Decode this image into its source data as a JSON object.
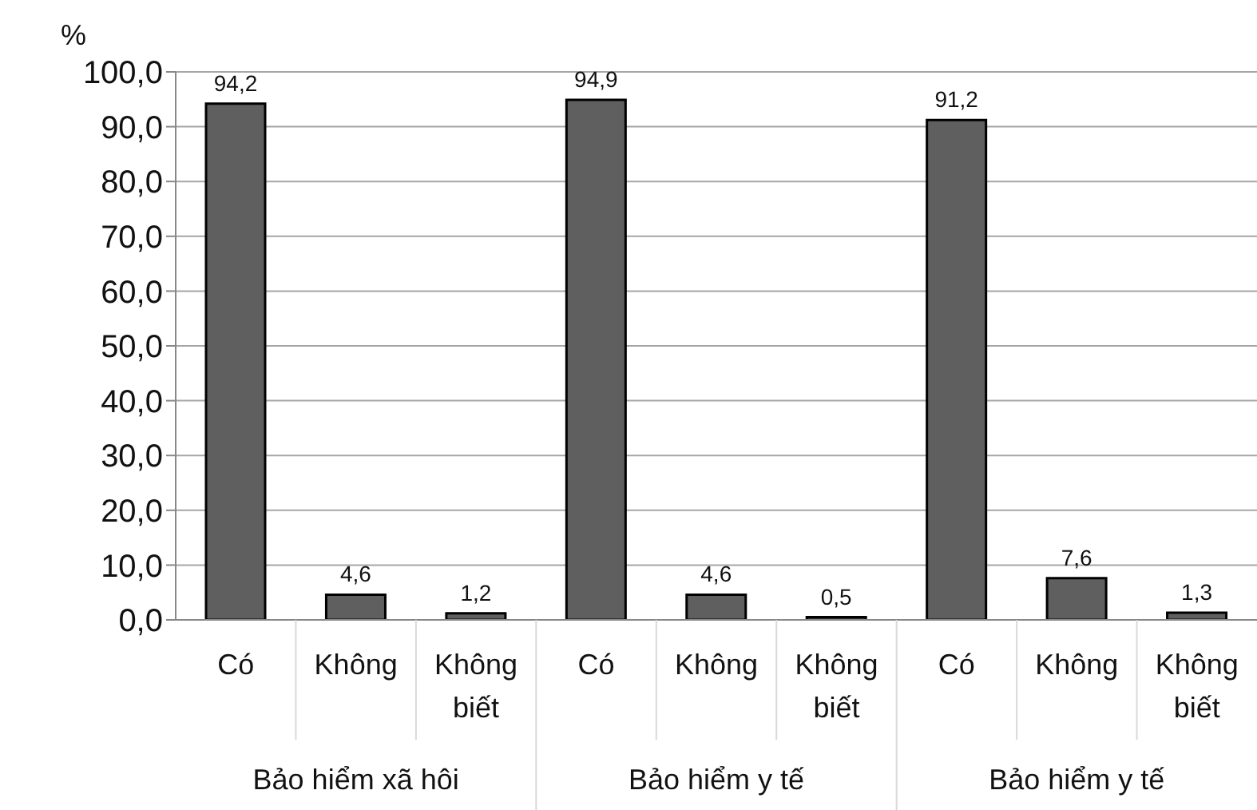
{
  "chart_data": {
    "type": "bar",
    "ylabel": "%",
    "categories": [
      "Có",
      "Không",
      "Không biết",
      "Có",
      "Không",
      "Không biết",
      "Có",
      "Không",
      "Không biết"
    ],
    "values": [
      94.2,
      4.6,
      1.2,
      94.9,
      4.6,
      0.5,
      91.2,
      7.6,
      1.3
    ],
    "value_labels": [
      "94,2",
      "4,6",
      "1,2",
      "94,9",
      "4,6",
      "0,5",
      "91,2",
      "7,6",
      "1,3"
    ],
    "color": "#5f5f5f",
    "ylim": [
      0,
      100
    ],
    "yticks": [
      {
        "value": 0,
        "label": "0,0"
      },
      {
        "value": 10,
        "label": "10,0"
      },
      {
        "value": 20,
        "label": "20,0"
      },
      {
        "value": 30,
        "label": "30,0"
      },
      {
        "value": 40,
        "label": "40,0"
      },
      {
        "value": 50,
        "label": "50,0"
      },
      {
        "value": 60,
        "label": "60,0"
      },
      {
        "value": 70,
        "label": "70,0"
      },
      {
        "value": 80,
        "label": "80,0"
      },
      {
        "value": 90,
        "label": "90,0"
      },
      {
        "value": 100,
        "label": "100,0"
      }
    ],
    "grid": "y",
    "annotations": [
      "Bảo hiểm xã hôi",
      "Bảo hiểm y tế",
      "Bảo hiểm y tế"
    ]
  }
}
